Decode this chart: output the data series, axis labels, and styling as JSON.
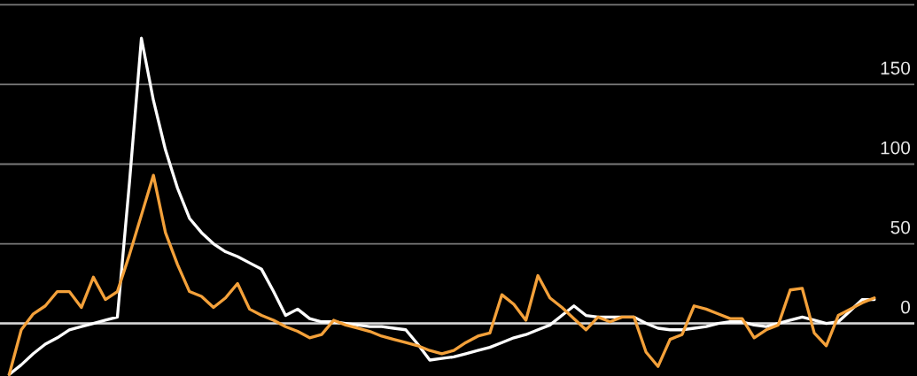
{
  "chart_data": {
    "type": "line",
    "categories": [
      null,
      null,
      null,
      null,
      null,
      null,
      null,
      null,
      null,
      null,
      null,
      null,
      null,
      null,
      null,
      null,
      null,
      null,
      null,
      null,
      null,
      null,
      null,
      null,
      null,
      null,
      null,
      null,
      null,
      null,
      null,
      null,
      null,
      null,
      null,
      null,
      null,
      null,
      null,
      null,
      null,
      null,
      null,
      null,
      null,
      null,
      null,
      null,
      null,
      null,
      null,
      null,
      null,
      null,
      null,
      null,
      null,
      null,
      null,
      null,
      null,
      null,
      null,
      null,
      null,
      null,
      null,
      null,
      null,
      null,
      null,
      null,
      null
    ],
    "series": [
      {
        "color": "#ffffff",
        "values": [
          -32,
          -26,
          -19,
          -13,
          -9,
          -4,
          -2,
          0,
          2,
          4,
          88,
          179,
          140,
          109,
          85,
          66,
          57,
          50,
          45,
          42,
          38,
          34,
          20,
          5,
          9,
          3,
          1,
          1,
          0,
          -1,
          -2,
          -2,
          -3,
          -4,
          -13,
          -23,
          -22,
          -21,
          -19,
          -17,
          -15,
          -12,
          -9,
          -7,
          -4,
          -1,
          5,
          11,
          5,
          4,
          4,
          4,
          4,
          0,
          -3,
          -4,
          -4,
          -3,
          -2,
          0,
          1,
          1,
          -1,
          -2,
          0,
          2,
          4,
          2,
          0,
          1,
          8,
          15,
          15
        ]
      },
      {
        "color": "#f4a13a",
        "values": [
          -32,
          -4,
          6,
          11,
          20,
          20,
          10,
          29,
          15,
          20,
          43,
          68,
          93,
          57,
          37,
          20,
          17,
          10,
          16,
          25,
          9,
          5,
          2,
          -2,
          -5,
          -9,
          -7,
          2,
          -1,
          -3,
          -5,
          -8,
          -10,
          -12,
          -14,
          -17,
          -19,
          -17,
          -12,
          -8,
          -6,
          18,
          12,
          2,
          30,
          16,
          10,
          3,
          -4,
          4,
          1,
          4,
          4,
          -18,
          -27,
          -10,
          -7,
          11,
          9,
          6,
          3,
          3,
          -9,
          -4,
          -1,
          21,
          22,
          -6,
          -14,
          5,
          9,
          13,
          16
        ]
      }
    ],
    "ylim": [
      -33,
      203
    ],
    "yticks": [
      0,
      50,
      100,
      150,
      {
        "value": 200,
        "label": null
      }
    ],
    "grid": "y",
    "tick_labels": "y",
    "ref_lines": [
      {
        "axis": "y",
        "value": 0,
        "color": "#d9d9d9"
      }
    ]
  }
}
